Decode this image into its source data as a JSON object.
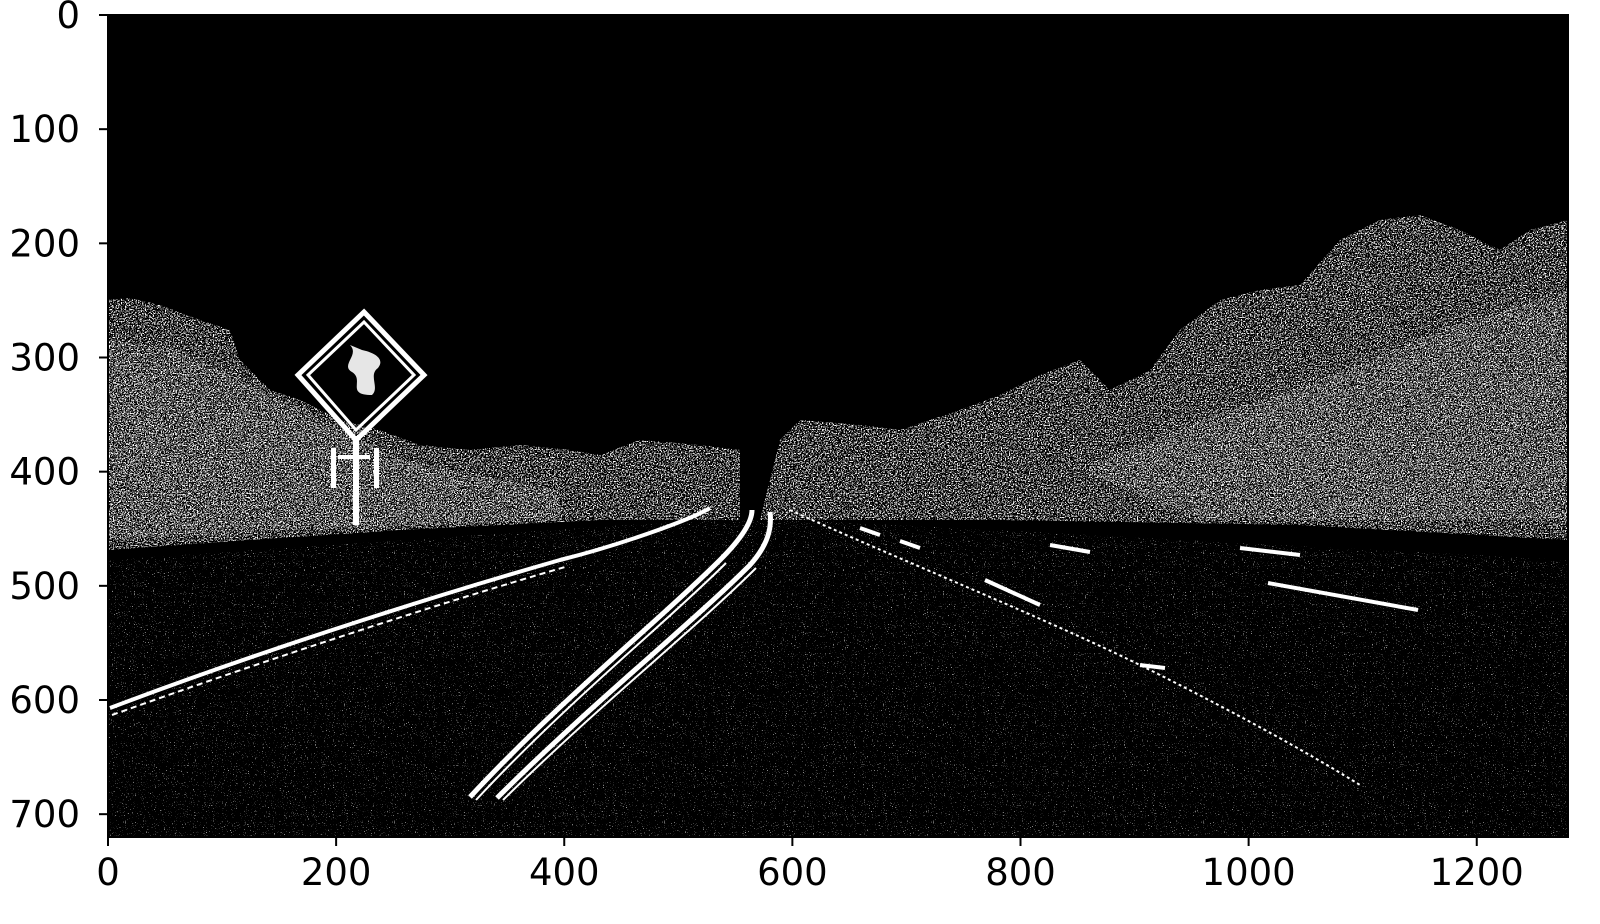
{
  "image": {
    "description_kind": "binary-edge-mask",
    "background_color": "#000000",
    "foreground_color": "#ffffff",
    "frame_color": "#000000"
  },
  "axes": {
    "x": {
      "ticks": [
        0,
        200,
        400,
        600,
        800,
        1000,
        1200
      ],
      "tick_labels": [
        "0",
        "200",
        "400",
        "600",
        "800",
        "1000",
        "1200"
      ],
      "range": [
        0,
        1280
      ]
    },
    "y": {
      "ticks": [
        0,
        100,
        200,
        300,
        400,
        500,
        600,
        700
      ],
      "tick_labels": [
        "0",
        "100",
        "200",
        "300",
        "400",
        "500",
        "600",
        "700"
      ],
      "range": [
        0,
        720
      ],
      "inverted": true
    }
  }
}
